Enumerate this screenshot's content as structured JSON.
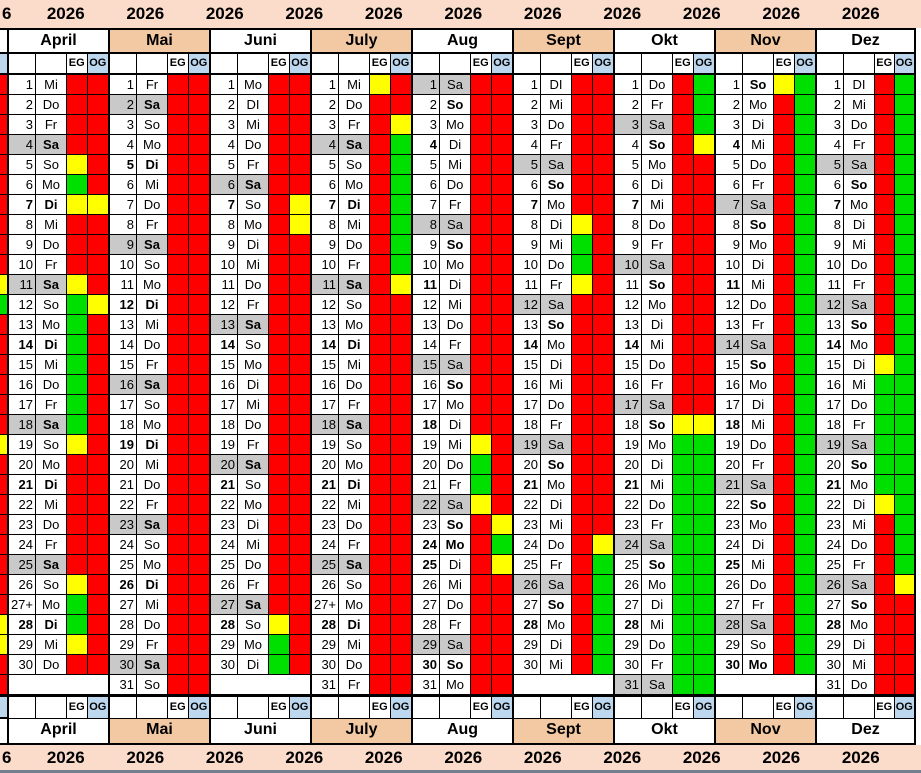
{
  "year": "2026",
  "top_strip": {
    "partial_label": "6",
    "labels": [
      "2026",
      "2026",
      "2026",
      "2026",
      "2026",
      "2026",
      "2026",
      "2026",
      "2026",
      "2026",
      "2026"
    ]
  },
  "bottom_strip": {
    "partial_label": "6",
    "labels": [
      "2026",
      "2026",
      "2026",
      "2026",
      "2026",
      "2026",
      "2026",
      "2026",
      "2026",
      "2026",
      "2026"
    ]
  },
  "floor_headers": {
    "eg": "EG",
    "og": "OG"
  },
  "colors": {
    "booked": "#ff0000",
    "free": "#00e000",
    "changeover": "#ffff00",
    "weekend_shade": "#c9c9c9",
    "month_tint": "#f3c9a4",
    "year_strip": "#fbdccb",
    "og_header": "#bdd7ee",
    "bottom_edge_line": "#708090"
  },
  "cut_left_column": {
    "note": "partially cropped previous-month OG column at left edge",
    "cell_colors": [
      "R",
      "R",
      "R",
      "R",
      "R",
      "R",
      "R",
      "R",
      "R",
      "R",
      "Y",
      "G",
      "R",
      "R",
      "R",
      "R",
      "R",
      "R",
      "Y",
      "R",
      "R",
      "R",
      "R",
      "R",
      "R",
      "R",
      "R",
      "Y",
      "Y",
      "R",
      "R"
    ]
  },
  "day_cell_format": "number|weekday|EG|OG|flags  (R=booked red, G=free green, Y=changeover yellow; flags: s=gray weekend shade, n=bold number, d=bold weekday)",
  "months": [
    {
      "name": "April",
      "tint": false,
      "days": [
        "1|Mi|R|R|",
        "2|Do|R|R|",
        "3|Fr|R|R|",
        "4|Sa|R|R|sd",
        "5|So|Y|R|",
        "6|Mo|G|R|",
        "7|Di|Y|Y|nd",
        "8|Mi|R|R|",
        "9|Do|R|R|",
        "10|Fr|R|R|",
        "11|Sa|Y|R|sd",
        "12|So|G|Y|",
        "13|Mo|G|R|",
        "14|Di|G|R|nd",
        "15|Mi|G|R|",
        "16|Do|G|R|",
        "17|Fr|G|R|",
        "18|Sa|G|R|sd",
        "19|So|Y|R|",
        "20|Mo|R|R|",
        "21|Di|R|R|nd",
        "22|Mi|R|R|",
        "23|Do|R|R|",
        "24|Fr|R|R|",
        "25|Sa|R|R|sd",
        "26|So|Y|R|",
        "27+|Mo|G|R|",
        "28|Di|G|R|nd",
        "29|Mi|Y|R|",
        "30|Do|R|R|",
        null
      ]
    },
    {
      "name": "Mai",
      "tint": true,
      "days": [
        "1|Fr|R|R|",
        "2|Sa|R|R|sd",
        "3|So|R|R|",
        "4|Mo|R|R|",
        "5|Di|R|R|nd",
        "6|Mi|R|R|",
        "7|Do|R|R|",
        "8|Fr|R|R|",
        "9|Sa|R|R|sd",
        "10|So|R|R|",
        "11|Mo|R|R|",
        "12|Di|R|R|nd",
        "13|Mi|R|R|",
        "14|Do|R|R|",
        "15|Fr|R|R|",
        "16|Sa|R|R|sd",
        "17|So|R|R|",
        "18|Mo|R|R|",
        "19|Di|R|R|nd",
        "20|Mi|R|R|",
        "21|Do|R|R|",
        "22|Fr|R|R|",
        "23|Sa|R|R|sd",
        "24|So|R|R|",
        "25|Mo|R|R|",
        "26|Di|R|R|nd",
        "27|Mi|R|R|",
        "28|Do|R|R|",
        "29|Fr|R|R|",
        "30|Sa|R|R|sd",
        "31|So|R|R|"
      ]
    },
    {
      "name": "Juni",
      "tint": false,
      "days": [
        "1|Mo|R|R|",
        "2|DI|R|R|",
        "3|Mi|R|R|",
        "4|Do|R|R|",
        "5|Fr|R|R|",
        "6|Sa|R|R|sd",
        "7|So|R|Y|n",
        "8|Mo|R|Y|",
        "9|Di|R|R|",
        "10|Mi|R|R|",
        "11|Do|R|R|",
        "12|Fr|R|R|",
        "13|Sa|R|R|sd",
        "14|So|R|R|n",
        "15|Mo|R|R|",
        "16|Di|R|R|",
        "17|Mi|R|R|",
        "18|Do|R|R|",
        "19|Fr|R|R|",
        "20|Sa|R|R|sd",
        "21|So|R|R|n",
        "22|Mo|R|R|",
        "23|Di|R|R|",
        "24|Mi|R|R|",
        "25|Do|R|R|",
        "26|Fr|R|R|",
        "27|Sa|R|R|sd",
        "28|So|Y|R|n",
        "29|Mo|G|R|",
        "30|Di|G|R|",
        null
      ]
    },
    {
      "name": "July",
      "tint": true,
      "days": [
        "1|Mi|Y|R|",
        "2|Do|R|R|",
        "3|Fr|R|Y|",
        "4|Sa|R|G|sd",
        "5|So|R|G|",
        "6|Mo|R|G|",
        "7|Di|R|G|nd",
        "8|Mi|R|G|",
        "9|Do|R|G|",
        "10|Fr|R|G|",
        "11|Sa|R|Y|sd",
        "12|So|R|R|",
        "13|Mo|R|R|",
        "14|Di|R|R|nd",
        "15|Mi|R|R|",
        "16|Do|R|R|",
        "17|Fr|R|R|",
        "18|Sa|R|R|sd",
        "19|So|R|R|",
        "20|Mo|R|R|",
        "21|Di|R|R|nd",
        "22|Mi|R|R|",
        "23|Do|R|R|",
        "24|Fr|R|R|",
        "25|Sa|R|R|sd",
        "26|So|R|R|",
        "27+|Mo|R|R|",
        "28|Di|R|R|nd",
        "29|Mi|R|R|",
        "30|Do|R|R|",
        "31|Fr|R|R|"
      ]
    },
    {
      "name": "Aug",
      "tint": false,
      "days": [
        "1|Sa|R|R|s",
        "2|So|R|R|d",
        "3|Mo|R|R|",
        "4|Di|R|R|n",
        "5|Mi|R|R|",
        "6|Do|R|R|",
        "7|Fr|R|R|",
        "8|Sa|R|R|s",
        "9|So|R|R|d",
        "10|Mo|R|R|",
        "11|Di|R|R|n",
        "12|Mi|R|R|",
        "13|Do|R|R|",
        "14|Fr|R|R|",
        "15|Sa|R|R|s",
        "16|So|R|R|d",
        "17|Mo|R|R|",
        "18|Di|R|R|n",
        "19|Mi|Y|R|",
        "20|Do|G|R|",
        "21|Fr|G|R|",
        "22|Sa|Y|R|s",
        "23|So|R|Y|d",
        "24|Mo|R|G|nd",
        "25|Di|R|Y|n",
        "26|Mi|R|R|",
        "27|Do|R|R|",
        "28|Fr|R|R|",
        "29|Sa|R|R|s",
        "30|So|R|R|nd",
        "31|Mo|R|R|"
      ]
    },
    {
      "name": "Sept",
      "tint": true,
      "days": [
        "1|DI|R|R|",
        "2|Mi|R|R|",
        "3|Do|R|R|",
        "4|Fr|R|R|",
        "5|Sa|R|R|s",
        "6|So|R|R|d",
        "7|Mo|R|R|n",
        "8|Di|Y|R|",
        "9|Mi|G|R|",
        "10|Do|G|R|",
        "11|Fr|Y|R|",
        "12|Sa|R|R|s",
        "13|So|R|R|d",
        "14|Mo|R|R|n",
        "15|Di|R|R|",
        "16|Mi|R|R|",
        "17|Do|R|R|",
        "18|Fr|R|R|",
        "19|Sa|R|R|s",
        "20|So|R|R|d",
        "21|Mo|R|R|n",
        "22|Di|R|R|",
        "23|Mi|R|R|",
        "24|Do|R|Y|",
        "25|Fr|R|G|",
        "26|Sa|R|G|s",
        "27|So|R|G|d",
        "28|Mo|R|G|n",
        "29|Di|R|G|",
        "30|Mi|R|G|",
        null
      ]
    },
    {
      "name": "Okt",
      "tint": false,
      "days": [
        "1|Do|R|G|",
        "2|Fr|R|G|",
        "3|Sa|R|G|s",
        "4|So|R|Y|d",
        "5|Mo|R|R|",
        "6|Di|R|R|",
        "7|Mi|R|R|n",
        "8|Do|R|R|",
        "9|Fr|R|R|",
        "10|Sa|R|R|s",
        "11|So|R|R|d",
        "12|Mo|R|R|",
        "13|Di|R|R|",
        "14|Mi|R|R|n",
        "15|Do|R|R|",
        "16|Fr|R|R|",
        "17|Sa|R|R|s",
        "18|So|Y|Y|d",
        "19|Mo|G|G|",
        "20|Di|G|G|",
        "21|Mi|G|G|n",
        "22|Do|G|G|",
        "23|Fr|G|G|",
        "24|Sa|G|G|s",
        "25|So|G|G|d",
        "26|Mo|G|G|",
        "27|Di|G|G|",
        "28|Mi|G|G|n",
        "29|Do|G|G|",
        "30|Fr|G|G|",
        "31|Sa|G|G|s"
      ]
    },
    {
      "name": "Nov",
      "tint": true,
      "days": [
        "1|So|Y|G|d",
        "2|Mo|R|G|",
        "3|Di|R|G|",
        "4|Mi|R|G|n",
        "5|Do|R|G|",
        "6|Fr|R|G|",
        "7|Sa|R|G|s",
        "8|So|R|G|d",
        "9|Mo|R|G|",
        "10|Di|R|G|",
        "11|Mi|R|G|n",
        "12|Do|R|G|",
        "13|Fr|R|G|",
        "14|Sa|R|G|s",
        "15|So|R|G|d",
        "16|Mo|R|G|",
        "17|Di|R|G|",
        "18|Mi|R|G|n",
        "19|Do|R|G|",
        "20|Fr|R|G|",
        "21|Sa|R|G|s",
        "22|So|R|G|d",
        "23|Mo|R|G|",
        "24|Di|R|G|",
        "25|Mi|R|G|n",
        "26|Do|R|G|",
        "27|Fr|R|G|",
        "28|Sa|R|G|s",
        "29|So|R|G|",
        "30|Mo|R|G|nd",
        null
      ]
    },
    {
      "name": "Dez",
      "tint": false,
      "days": [
        "1|DI|R|G|",
        "2|Mi|R|G|",
        "3|Do|R|G|",
        "4|Fr|R|G|",
        "5|Sa|R|G|s",
        "6|So|R|G|d",
        "7|Mo|R|G|n",
        "8|Di|R|G|",
        "9|Mi|R|G|",
        "10|Do|R|G|",
        "11|Fr|R|G|",
        "12|Sa|R|G|s",
        "13|So|R|G|d",
        "14|Mo|R|G|n",
        "15|Di|Y|G|",
        "16|Mi|G|G|",
        "17|Do|G|G|",
        "18|Fr|G|G|",
        "19|Sa|G|G|s",
        "20|So|G|G|d",
        "21|Mo|G|G|n",
        "22|Di|Y|G|",
        "23|Mi|R|G|",
        "24|Do|R|G|",
        "25|Fr|R|G|",
        "26|Sa|R|Y|s",
        "27|So|R|R|d",
        "28|Mo|R|R|n",
        "29|Di|R|R|",
        "30|Mi|R|R|",
        "31|Do|R|R|"
      ]
    }
  ]
}
